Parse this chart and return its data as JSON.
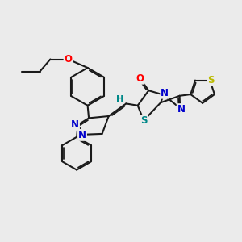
{
  "bg_color": "#ebebeb",
  "bond_color": "#1a1a1a",
  "bond_width": 1.5,
  "atom_colors": {
    "O": "#ff0000",
    "N": "#0000cc",
    "S_yellow": "#bbbb00",
    "S_teal": "#008888",
    "H": "#008888",
    "C": "#1a1a1a"
  },
  "font_size_atom": 8.5
}
